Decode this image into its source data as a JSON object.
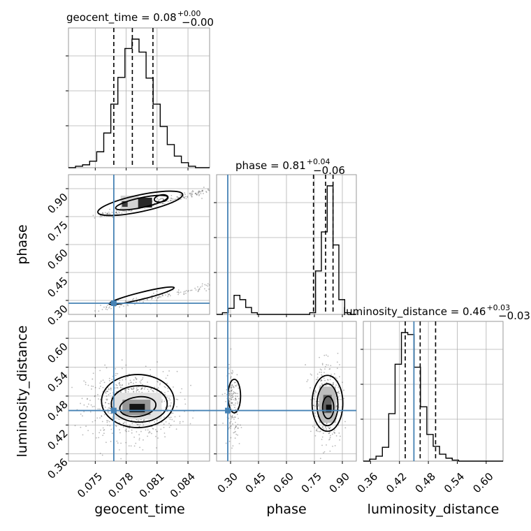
{
  "chart_data": {
    "type": "corner",
    "parameters": [
      {
        "name": "geocent_time",
        "label": "geocent_time",
        "title_main": "geocent_time = 0.08",
        "err_plus": "+0.00",
        "err_minus": "−0.00",
        "range": [
          0.0724,
          0.0861
        ],
        "ticks": [
          "0.075",
          "0.078",
          "0.081",
          "0.084"
        ],
        "tick_values": [
          0.075,
          0.078,
          0.081,
          0.084
        ],
        "quantiles": [
          0.0768,
          0.0786,
          0.0806
        ],
        "truth": 0.0768,
        "hist_bins": [
          0.0724,
          0.0861
        ],
        "hist_counts": [
          0,
          2,
          4,
          9,
          22,
          48,
          88,
          125,
          165,
          178,
          160,
          124,
          88,
          57,
          32,
          16,
          7,
          2,
          0,
          0
        ]
      },
      {
        "name": "phase",
        "label": "phase",
        "title_main": "phase = 0.81",
        "err_plus": "+0.04",
        "err_minus": "−0.06",
        "range": [
          0.225,
          0.975
        ],
        "ticks": [
          "0.30",
          "0.45",
          "0.60",
          "0.75",
          "0.90"
        ],
        "tick_values": [
          0.3,
          0.45,
          0.6,
          0.75,
          0.9
        ],
        "quantiles": [
          0.745,
          0.81,
          0.85
        ],
        "truth": 0.285,
        "hist_counts": [
          0,
          2,
          7,
          22,
          17,
          8,
          2,
          0,
          0,
          0,
          0,
          0,
          0,
          0,
          0,
          0,
          2,
          50,
          95,
          148,
          80,
          17,
          2,
          0
        ]
      },
      {
        "name": "luminosity_distance",
        "label": "luminosity_distance",
        "title_main": "luminosity_distance = 0.46",
        "err_plus": "+0.03",
        "err_minus": "−0.03",
        "range": [
          0.345,
          0.635
        ],
        "ticks": [
          "0.36",
          "0.42",
          "0.48",
          "0.54",
          "0.60"
        ],
        "tick_values": [
          0.36,
          0.42,
          0.48,
          0.54,
          0.6
        ],
        "quantiles": [
          0.432,
          0.463,
          0.495
        ],
        "truth": 0.45,
        "hist_counts": [
          0,
          2,
          5,
          14,
          48,
          98,
          130,
          128,
          95,
          55,
          27,
          15,
          7,
          3,
          1,
          0,
          0,
          0,
          0,
          0,
          0,
          0
        ]
      }
    ],
    "joint": {
      "phase_vs_geocent_time": {
        "mode_points": [
          [
            0.0785,
            0.8
          ],
          [
            0.079,
            0.82
          ],
          [
            0.0805,
            0.84
          ],
          [
            0.0825,
            0.87
          ]
        ],
        "low_mode_points": [
          [
            0.0778,
            0.29
          ],
          [
            0.079,
            0.31
          ],
          [
            0.0805,
            0.34
          ],
          [
            0.082,
            0.37
          ]
        ]
      },
      "luminosity_distance_vs_geocent_time": {
        "center": [
          0.0782,
          0.455
        ]
      },
      "luminosity_distance_vs_phase": {
        "centers": [
          [
            0.32,
            0.48
          ],
          [
            0.82,
            0.455
          ]
        ]
      }
    },
    "colors": {
      "truth": "#4682b4",
      "hist": "#000000",
      "samples": "#333333"
    },
    "grid": true
  }
}
